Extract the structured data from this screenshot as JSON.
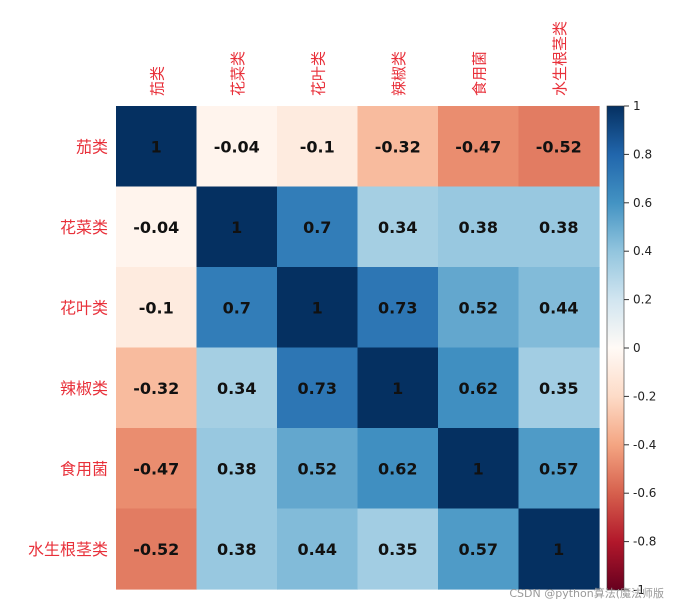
{
  "chart_data": {
    "type": "heatmap",
    "title": "",
    "xlabel": "",
    "ylabel": "",
    "categories": [
      "茄类",
      "花菜类",
      "花叶类",
      "辣椒类",
      "食用菌",
      "水生根茎类"
    ],
    "values": [
      [
        1,
        -0.04,
        -0.1,
        -0.32,
        -0.47,
        -0.52
      ],
      [
        -0.04,
        1,
        0.7,
        0.34,
        0.38,
        0.38
      ],
      [
        -0.1,
        0.7,
        1,
        0.73,
        0.52,
        0.44
      ],
      [
        -0.32,
        0.34,
        0.73,
        1,
        0.62,
        0.35
      ],
      [
        -0.47,
        0.38,
        0.52,
        0.62,
        1,
        0.57
      ],
      [
        -0.52,
        0.38,
        0.44,
        0.35,
        0.57,
        1
      ]
    ],
    "cell_labels": [
      [
        "1",
        "-0.04",
        "-0.1",
        "-0.32",
        "-0.47",
        "-0.52"
      ],
      [
        "-0.04",
        "1",
        "0.7",
        "0.34",
        "0.38",
        "0.38"
      ],
      [
        "-0.1",
        "0.7",
        "1",
        "0.73",
        "0.52",
        "0.44"
      ],
      [
        "-0.32",
        "0.34",
        "0.73",
        "1",
        "0.62",
        "0.35"
      ],
      [
        "-0.47",
        "0.38",
        "0.52",
        "0.62",
        "1",
        "0.57"
      ],
      [
        "-0.52",
        "0.38",
        "0.44",
        "0.35",
        "0.57",
        "1"
      ]
    ],
    "colorbar": {
      "range": [
        -1,
        1
      ],
      "ticks": [
        1,
        0.8,
        0.6,
        0.4,
        0.2,
        0,
        -0.2,
        -0.4,
        -0.6,
        -0.8,
        -1
      ],
      "tick_labels": [
        "1",
        "0.8",
        "0.6",
        "0.4",
        "0.2",
        "0",
        "-0.2",
        "-0.4",
        "-0.6",
        "-0.8",
        "-1"
      ],
      "colormap": "RdBu"
    },
    "label_color": "#e8303a",
    "grid": false,
    "legend": "colorbar-right"
  },
  "watermark": "CSDN @python算法(魔法师版"
}
